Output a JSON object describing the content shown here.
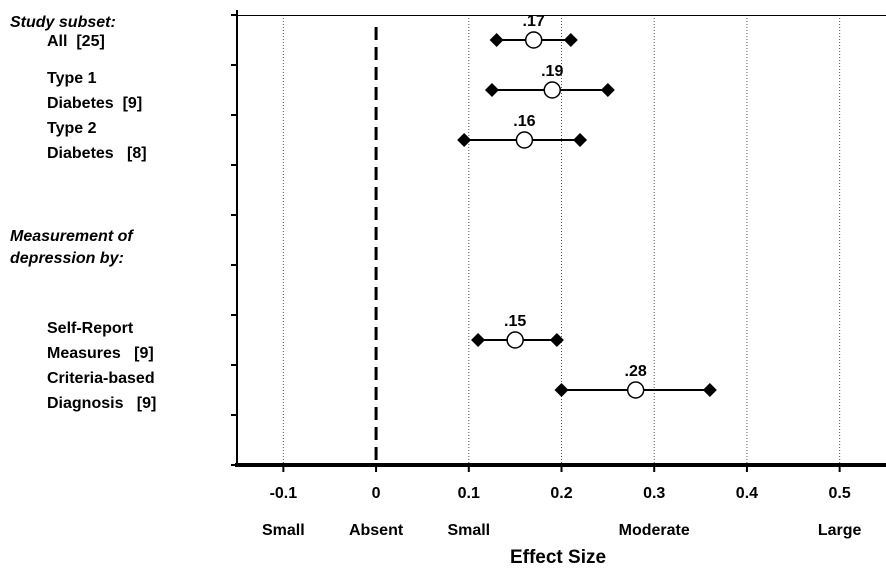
{
  "chart_data": {
    "type": "forest",
    "xlabel": "Effect Size",
    "xlim": [
      -0.15,
      0.55
    ],
    "xticks": [
      {
        "value": -0.1,
        "label": "-0.1"
      },
      {
        "value": 0,
        "label": "0"
      },
      {
        "value": 0.1,
        "label": "0.1"
      },
      {
        "value": 0.2,
        "label": "0.2"
      },
      {
        "value": 0.3,
        "label": "0.3"
      },
      {
        "value": 0.4,
        "label": "0.4"
      },
      {
        "value": 0.5,
        "label": "0.5"
      }
    ],
    "magnitude_labels": [
      {
        "value": -0.1,
        "label": "Small"
      },
      {
        "value": 0,
        "label": "Absent"
      },
      {
        "value": 0.1,
        "label": "Small"
      },
      {
        "value": 0.3,
        "label": "Moderate"
      },
      {
        "value": 0.5,
        "label": "Large"
      }
    ],
    "vertical_gridlines": true,
    "reference_line": {
      "value": 0,
      "style": "dashed"
    },
    "row_count": 9,
    "headers": [
      {
        "row": 0,
        "lines": [
          "Study subset:"
        ]
      },
      {
        "row": 4.5,
        "lines": [
          "Measurement of",
          "depression by:"
        ]
      }
    ],
    "rows": [
      {
        "row": 0.5,
        "label_lines": [
          "All  [25]"
        ],
        "estimate": 0.17,
        "estimate_label": ".17",
        "ci": [
          0.13,
          0.21
        ]
      },
      {
        "row": 1.5,
        "label_lines": [
          "Type 1",
          "Diabetes  [9]"
        ],
        "estimate": 0.19,
        "estimate_label": ".19",
        "ci": [
          0.125,
          0.25
        ]
      },
      {
        "row": 2.5,
        "label_lines": [
          "Type 2",
          "Diabetes   [8]"
        ],
        "estimate": 0.16,
        "estimate_label": ".16",
        "ci": [
          0.095,
          0.22
        ]
      },
      {
        "row": 6.5,
        "label_lines": [
          "Self-Report",
          "Measures   [9]"
        ],
        "estimate": 0.15,
        "estimate_label": ".15",
        "ci": [
          0.11,
          0.195
        ]
      },
      {
        "row": 7.5,
        "label_lines": [
          "Criteria-based",
          "Diagnosis   [9]"
        ],
        "estimate": 0.28,
        "estimate_label": ".28",
        "ci": [
          0.2,
          0.36
        ]
      }
    ]
  }
}
